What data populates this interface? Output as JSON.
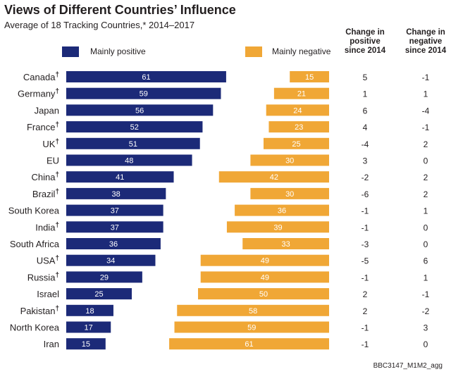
{
  "header": {
    "title": "Views of Different Countries’ Influence",
    "subtitle": "Average of 18 Tracking Countries,* 2014–2017"
  },
  "legend": {
    "positive_label": "Mainly positive",
    "negative_label": "Mainly negative"
  },
  "columns": {
    "change_positive": "Change in positive since 2014",
    "change_negative": "Change in negative since 2014"
  },
  "colors": {
    "positive": "#1c2a78",
    "negative": "#f0a736",
    "text": "#231f20"
  },
  "footer": {
    "code": "BBC3147_M1M2_agg"
  },
  "chart_data": {
    "type": "bar",
    "title": "Views of Different Countries’ Influence",
    "subtitle": "Average of 18 Tracking Countries,* 2014–2017",
    "categories": [
      "Canada",
      "Germany",
      "Japan",
      "France",
      "UK",
      "EU",
      "China",
      "Brazil",
      "South Korea",
      "India",
      "South Africa",
      "USA",
      "Russia",
      "Israel",
      "Pakistan",
      "North Korea",
      "Iran"
    ],
    "dagger": [
      true,
      true,
      false,
      true,
      true,
      false,
      true,
      true,
      false,
      true,
      false,
      true,
      true,
      false,
      true,
      false,
      false
    ],
    "dagger_symbol": "†",
    "series": [
      {
        "name": "Mainly positive",
        "values": [
          61,
          59,
          56,
          52,
          51,
          48,
          41,
          38,
          37,
          37,
          36,
          34,
          29,
          25,
          18,
          17,
          15
        ]
      },
      {
        "name": "Mainly negative",
        "values": [
          15,
          21,
          24,
          23,
          25,
          30,
          42,
          30,
          36,
          39,
          33,
          49,
          49,
          50,
          58,
          59,
          61
        ]
      }
    ],
    "change_positive": [
      "5",
      "1",
      "6",
      "4",
      "-4",
      "3",
      "-2",
      "-6",
      "-1",
      "-1",
      "-3",
      "-5",
      "-1",
      "2",
      "2",
      "-1",
      "-1"
    ],
    "change_negative": [
      "-1",
      "1",
      "-4",
      "-1",
      "2",
      "0",
      "2",
      "2",
      "1",
      "0",
      "0",
      "6",
      "1",
      "-1",
      "-2",
      "3",
      "0"
    ],
    "xlim": [
      0,
      100
    ],
    "legend_position": "top"
  }
}
